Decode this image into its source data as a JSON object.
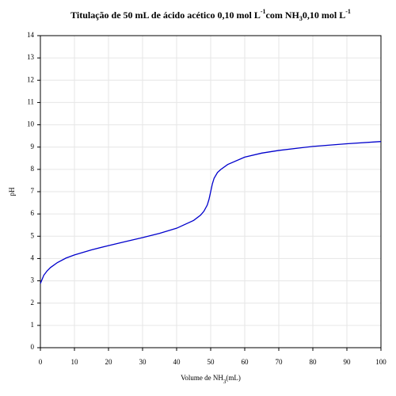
{
  "chart_data": {
    "type": "line",
    "title": [
      "Titulação de 50 mL de ácido acético 0,10 mol L",
      "-1",
      "com NH",
      "3",
      "0,10 mol L",
      "-1"
    ],
    "xlabel": [
      "Volume de NH",
      "3",
      "(mL)"
    ],
    "ylabel": "pH",
    "x": [
      0,
      1,
      2,
      3,
      5,
      7.5,
      10,
      15,
      20,
      25,
      30,
      35,
      40,
      45,
      47,
      48,
      49,
      49.5,
      50,
      50.5,
      51,
      52,
      53,
      55,
      60,
      65,
      70,
      80,
      90,
      100
    ],
    "series": [
      {
        "color": "#0000cc",
        "values": [
          2.88,
          3.25,
          3.45,
          3.6,
          3.82,
          4.02,
          4.16,
          4.39,
          4.58,
          4.76,
          4.94,
          5.13,
          5.36,
          5.71,
          5.94,
          6.12,
          6.4,
          6.65,
          7.0,
          7.35,
          7.6,
          7.86,
          8.0,
          8.22,
          8.55,
          8.73,
          8.85,
          9.03,
          9.15,
          9.25
        ]
      }
    ],
    "xlim": [
      0,
      100
    ],
    "xticks": [
      0,
      10,
      20,
      30,
      40,
      50,
      60,
      70,
      80,
      90,
      100
    ],
    "ylim": [
      0,
      14
    ],
    "yticks": [
      0,
      1,
      2,
      3,
      4,
      5,
      6,
      7,
      8,
      9,
      10,
      11,
      12,
      13,
      14
    ],
    "grid": true
  }
}
